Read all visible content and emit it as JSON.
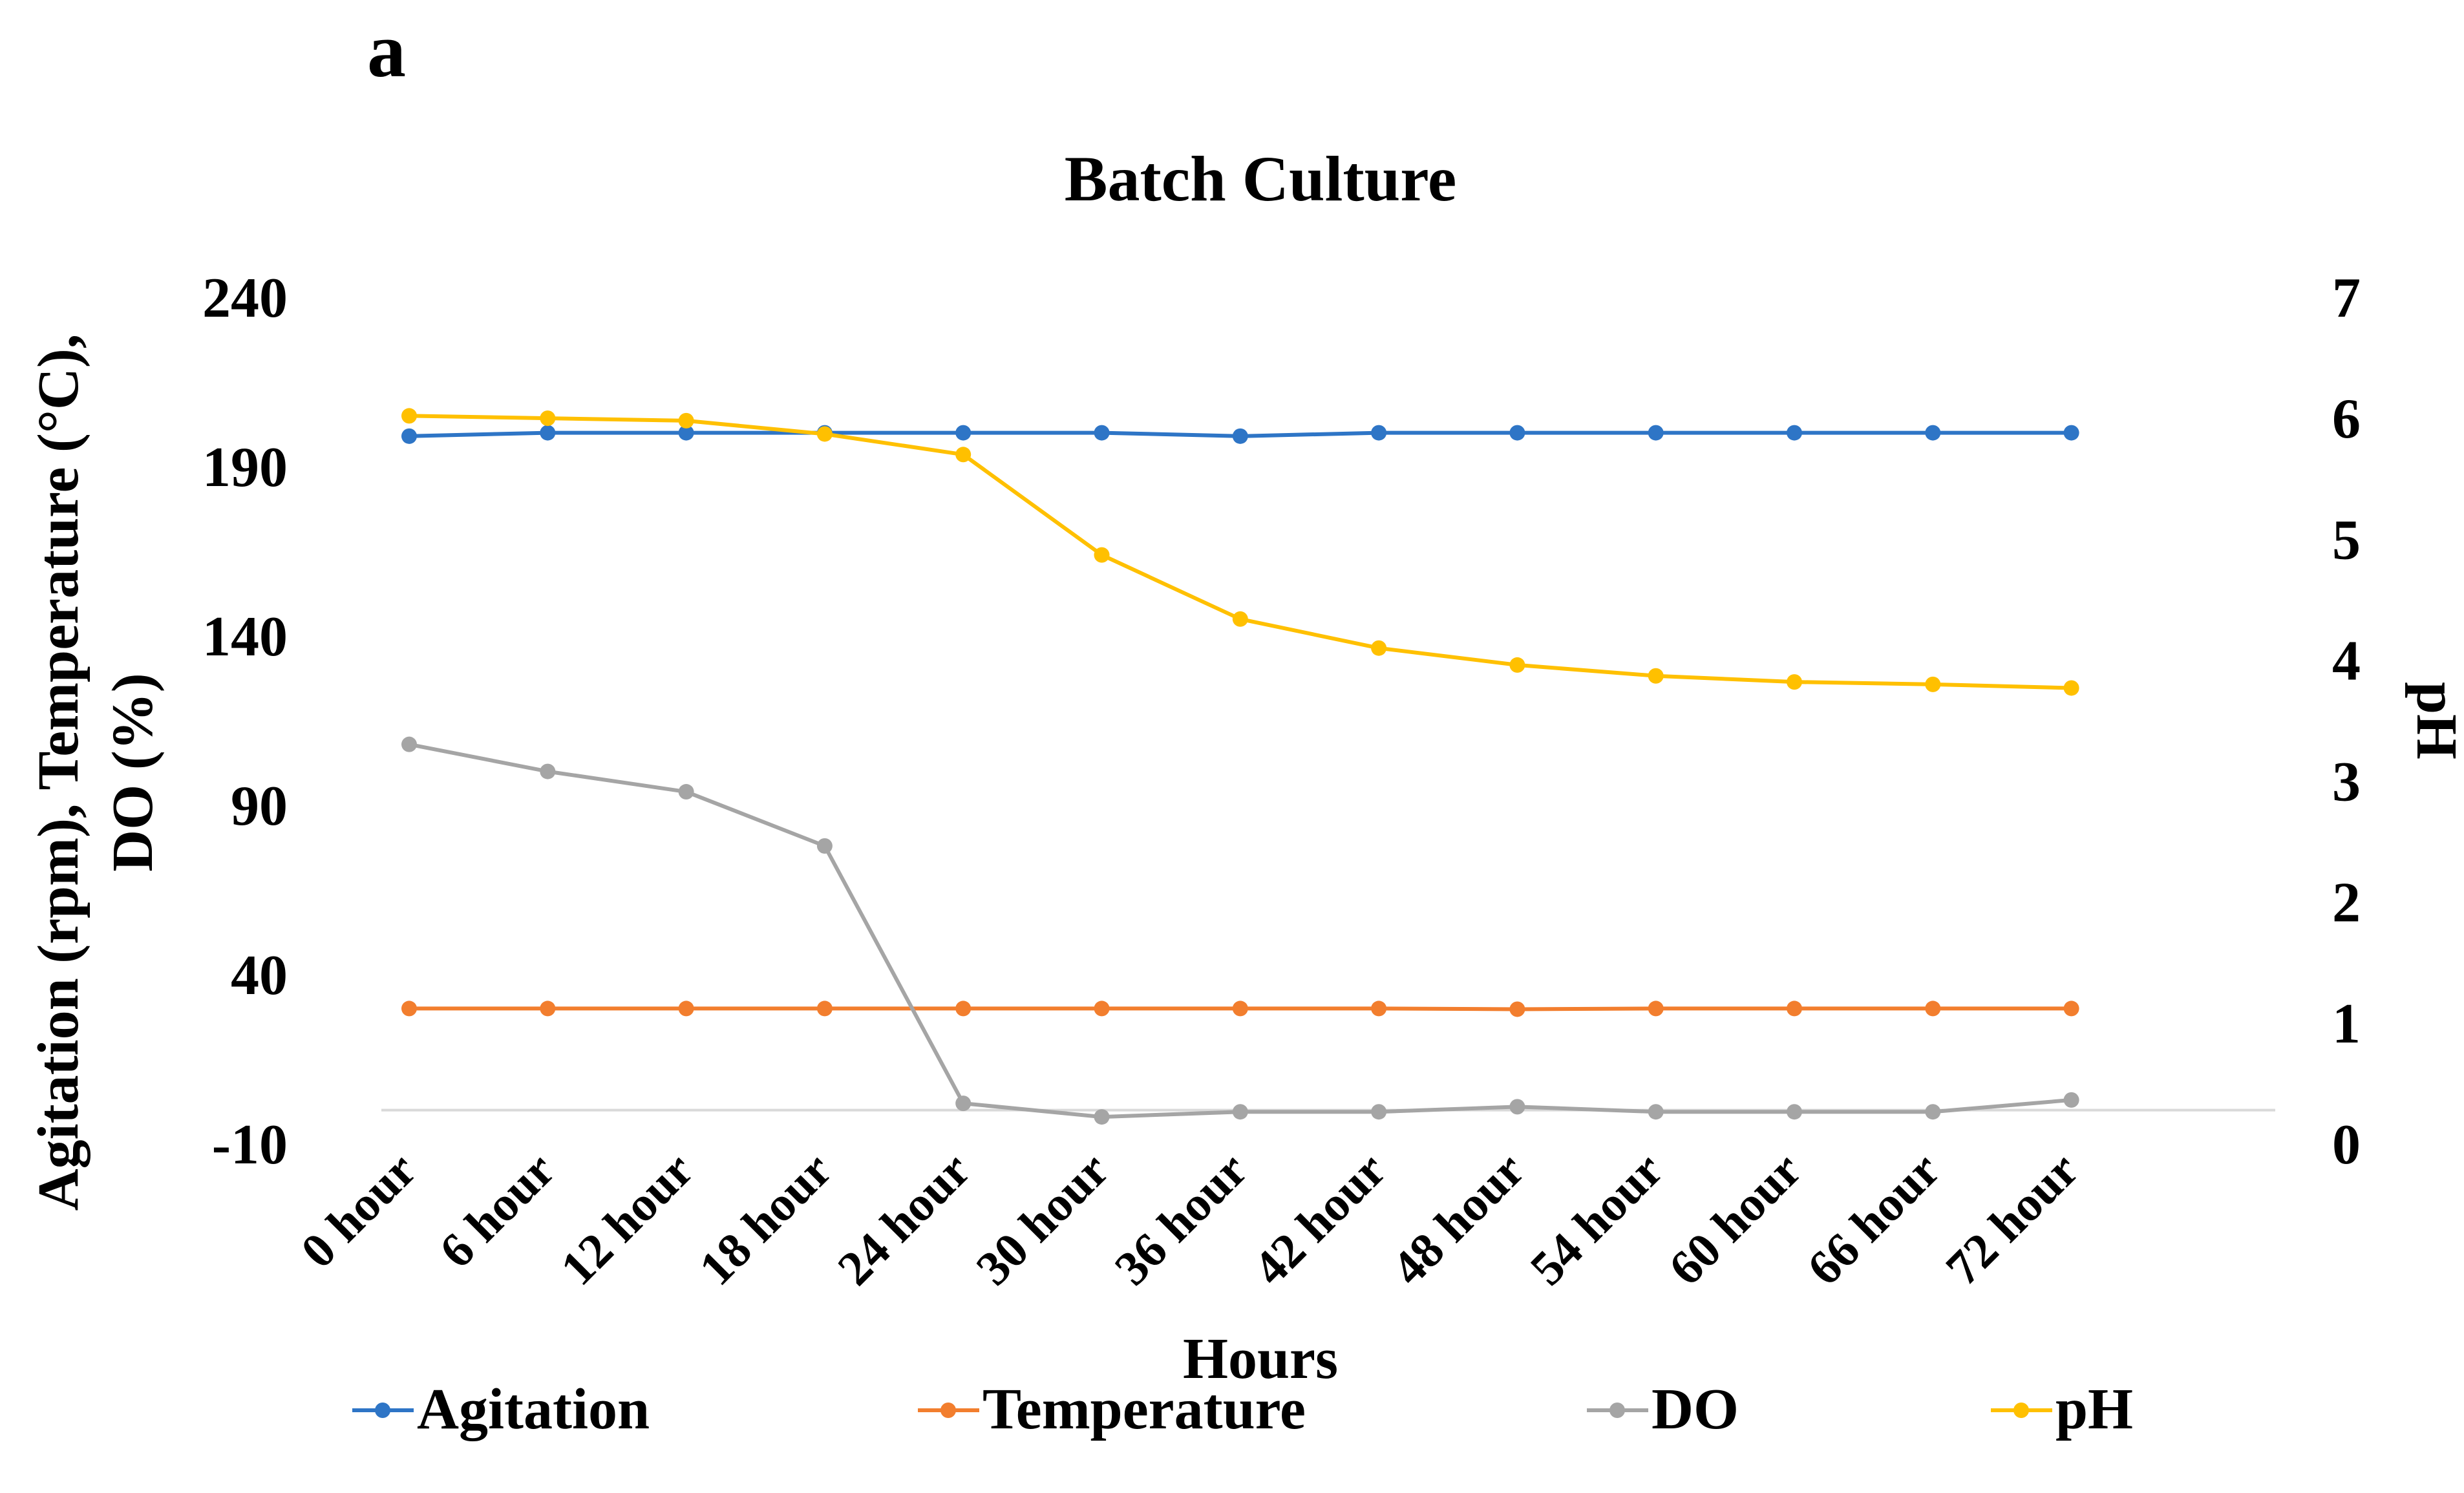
{
  "panel_label": "a",
  "chart_data": {
    "type": "line",
    "title": "Batch Culture",
    "xlabel": "Hours",
    "ylabel_lines": [
      "Agitation (rpm), Temperature (°C),",
      "DO (%)"
    ],
    "y2label": "pH",
    "categories": [
      "0 hour",
      "6 hour",
      "12 hour",
      "18 hour",
      "24 hour",
      "30 hour",
      "36 hour",
      "42 hour",
      "48 hour",
      "54 hour",
      "60 hour",
      "66 hour",
      "72 hour"
    ],
    "ylim": [
      -10,
      240
    ],
    "yticks": [
      "240",
      "190",
      "140",
      "90",
      "40",
      "-10"
    ],
    "y2lim": [
      0,
      7
    ],
    "y2ticks": [
      "7",
      "6",
      "5",
      "4",
      "3",
      "2",
      "1",
      "0"
    ],
    "series": [
      {
        "name": "Agitation",
        "axis": "left",
        "color": "#2e75c6",
        "values": [
          199,
          200,
          200,
          200,
          200,
          200,
          199,
          200,
          200,
          200,
          200,
          200,
          200
        ]
      },
      {
        "name": "Temperature",
        "axis": "left",
        "color": "#f27e2e",
        "values": [
          30,
          30,
          30,
          30,
          30,
          30,
          30,
          30,
          29.8,
          30,
          30,
          30,
          30
        ]
      },
      {
        "name": "DO",
        "axis": "left",
        "color": "#a5a5a5",
        "values": [
          108,
          100,
          94,
          78,
          2,
          -2,
          -0.5,
          -0.5,
          1,
          -0.5,
          -0.5,
          -0.5,
          3
        ]
      },
      {
        "name": "pH",
        "axis": "right",
        "color": "#ffc000",
        "values": [
          6.02,
          6.0,
          5.98,
          5.87,
          5.7,
          4.87,
          4.34,
          4.1,
          3.96,
          3.87,
          3.82,
          3.8,
          3.77
        ]
      }
    ],
    "legend": {
      "position": "bottom",
      "entries": [
        "Agitation",
        "Temperature",
        "DO",
        "pH"
      ]
    }
  }
}
